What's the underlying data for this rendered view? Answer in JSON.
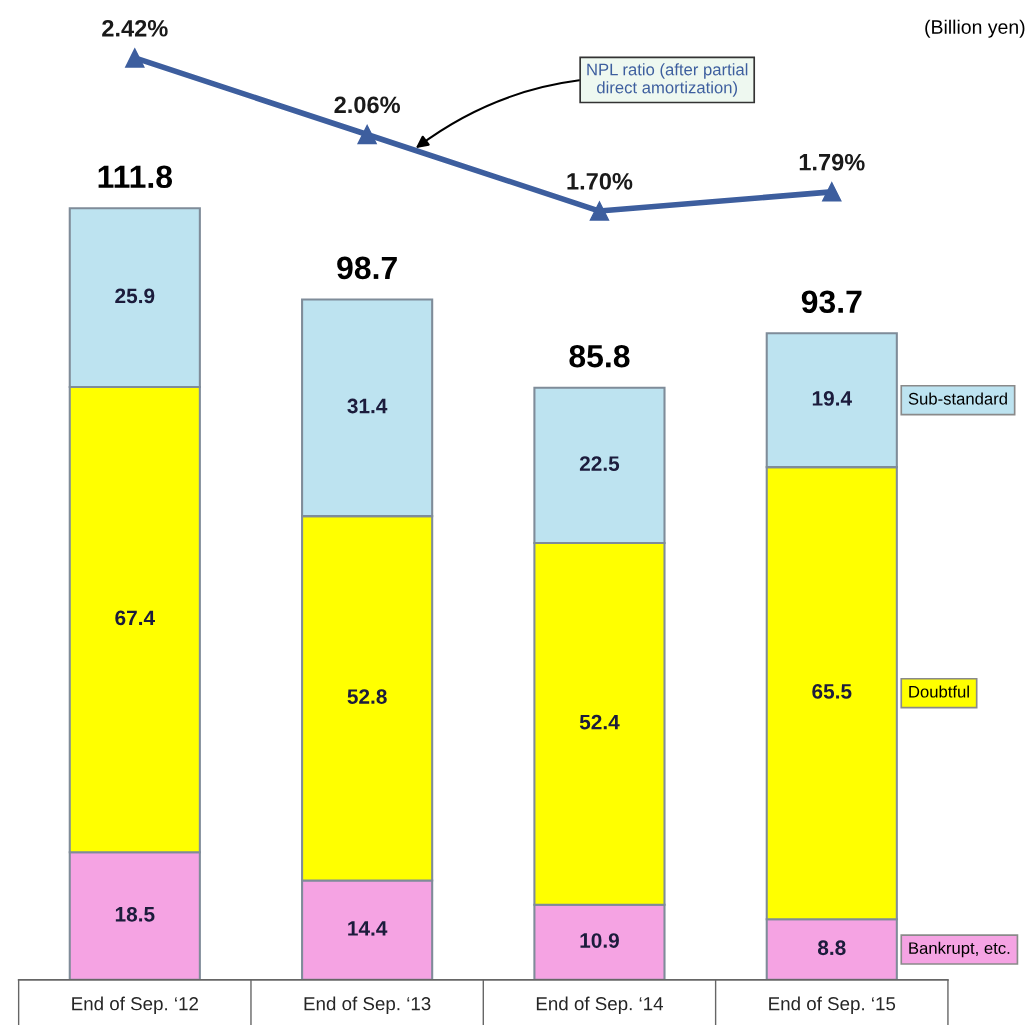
{
  "chart_data": [
    {
      "type": "line",
      "categories": [
        null,
        null,
        null,
        null
      ],
      "marker": "triangle",
      "series": [
        {
          "name": "NPL ratio (after partial direct amortization)",
          "color": "#3d5e9e",
          "values": [
            2.42,
            2.06,
            1.7,
            1.79
          ],
          "value_labels": [
            "2.42%",
            "2.06%",
            "1.70%",
            "1.79%"
          ]
        }
      ]
    },
    {
      "type": "bar",
      "stacked": true,
      "categories": [
        "End of Sep. ‘12",
        "End of Sep. ‘13",
        "End of Sep. ‘14",
        "End of Sep. ‘15"
      ],
      "series": [
        {
          "name": "Bankrupt, etc.",
          "color": "#f5a3e3",
          "values": [
            18.5,
            14.4,
            10.9,
            8.8
          ]
        },
        {
          "name": "Doubtful",
          "color": "#ffff00",
          "values": [
            67.4,
            52.8,
            52.4,
            65.5
          ]
        },
        {
          "name": "Sub-standard",
          "color": "#bde3f0",
          "values": [
            25.9,
            31.4,
            22.5,
            19.4
          ]
        }
      ],
      "data_labels": true,
      "totals": [
        "111.8",
        "98.7",
        "85.8",
        "93.7"
      ],
      "annotations": [
        "(Billion yen)"
      ],
      "tick_labels": "x"
    }
  ]
}
